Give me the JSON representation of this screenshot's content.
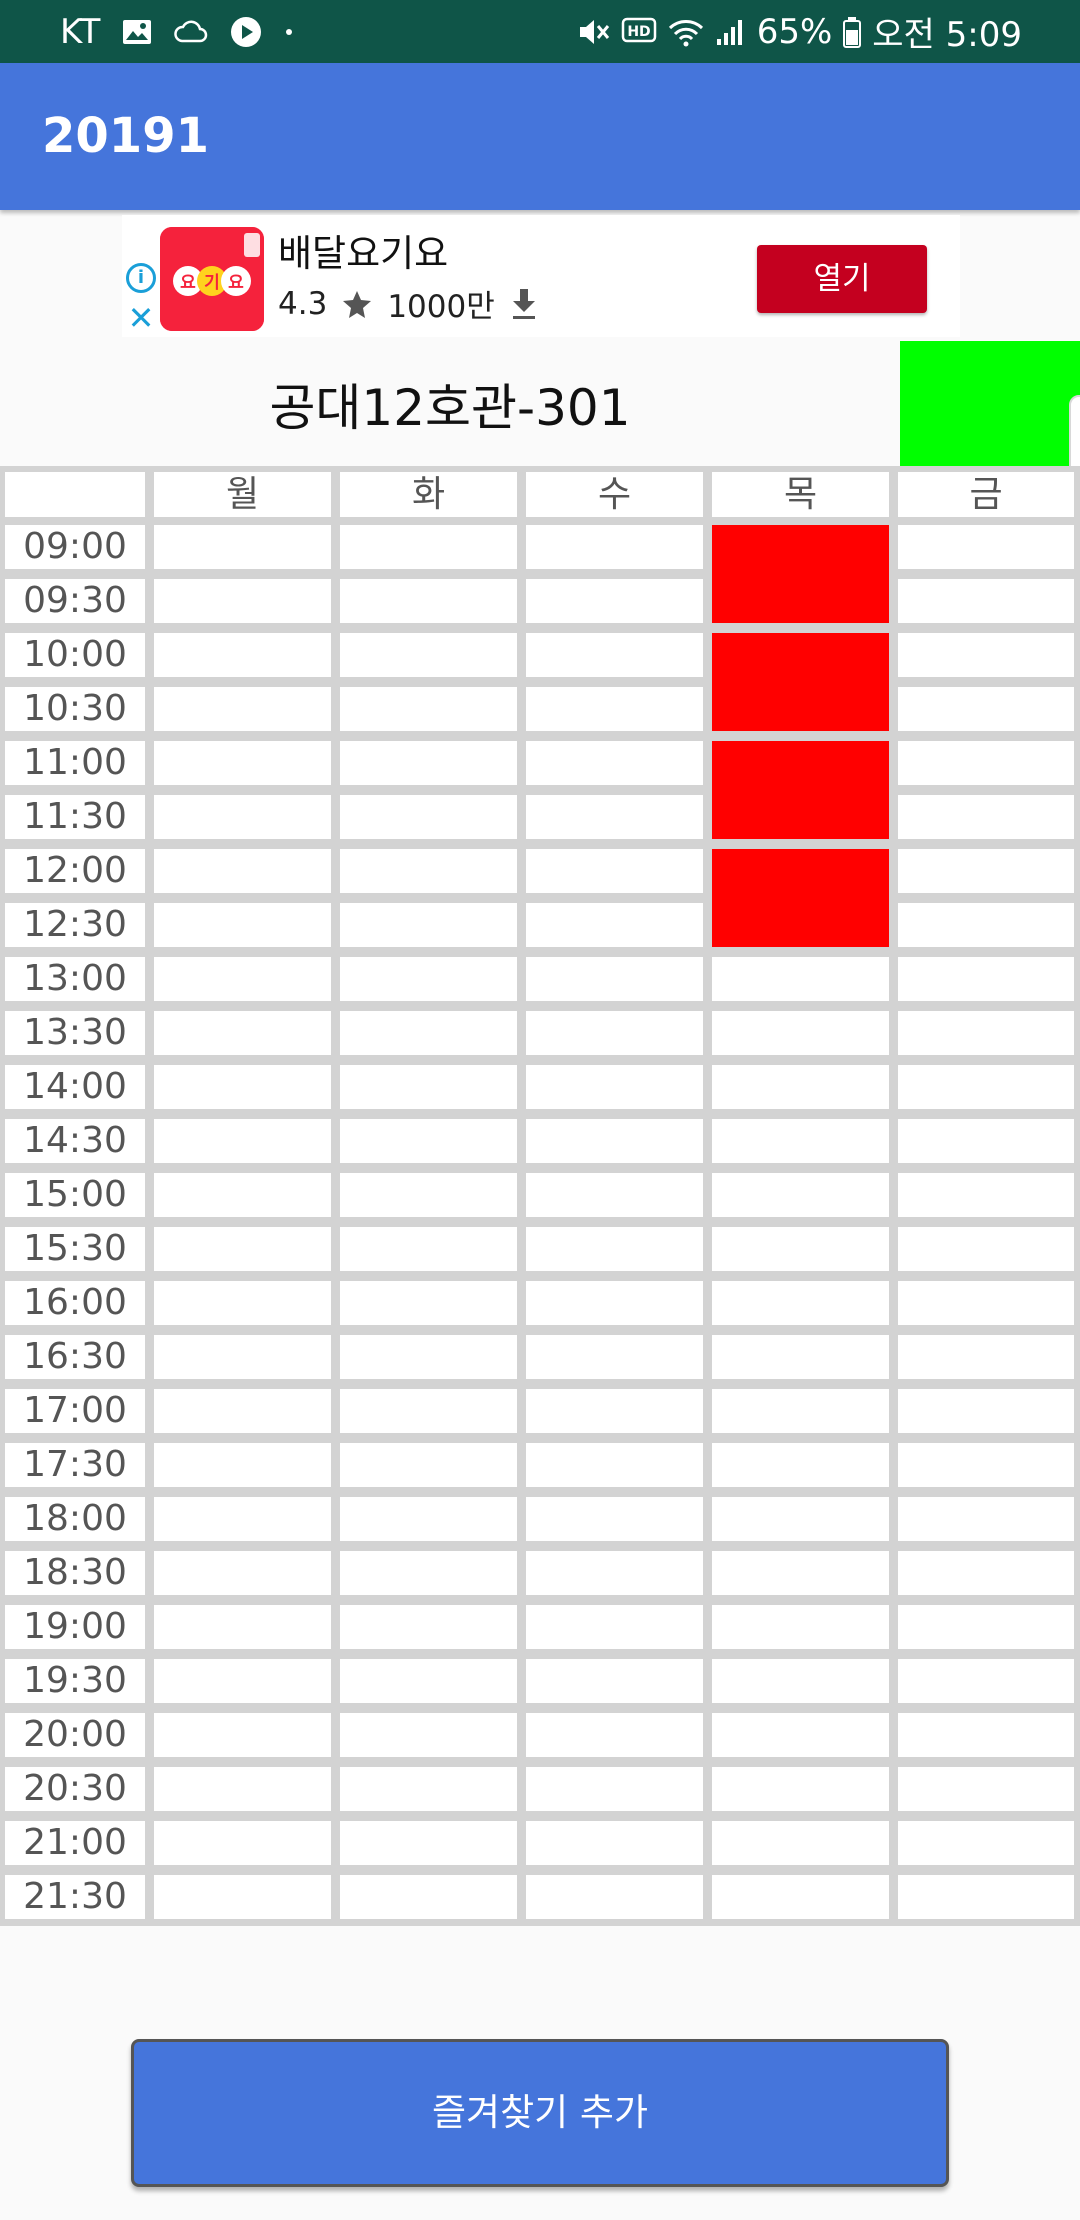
{
  "status_bar": {
    "carrier": "KT",
    "battery_percent": "65%",
    "time": "오전 5:09"
  },
  "app_bar": {
    "title": "20191"
  },
  "ad": {
    "app_name": "배달요기요",
    "rating": "4.3",
    "downloads": "1000만",
    "open_label": "열기",
    "logo_text": "요기요"
  },
  "room": {
    "title": "공대12호관-301",
    "status_color": "#00ff00"
  },
  "timetable": {
    "days": [
      "월",
      "화",
      "수",
      "목",
      "금"
    ],
    "times": [
      "09:00",
      "09:30",
      "10:00",
      "10:30",
      "11:00",
      "11:30",
      "12:00",
      "12:30",
      "13:00",
      "13:30",
      "14:00",
      "14:30",
      "15:00",
      "15:30",
      "16:00",
      "16:30",
      "17:00",
      "17:30",
      "18:00",
      "18:30",
      "19:00",
      "19:30",
      "20:00",
      "20:30",
      "21:00",
      "21:30"
    ],
    "booked_color": "#ff0000",
    "booked_blocks": [
      {
        "day": "목",
        "start": "09:00",
        "end": "10:00"
      },
      {
        "day": "목",
        "start": "10:00",
        "end": "11:00"
      },
      {
        "day": "목",
        "start": "11:00",
        "end": "12:00"
      },
      {
        "day": "목",
        "start": "12:00",
        "end": "13:00"
      }
    ]
  },
  "actions": {
    "add_favorite_label": "즐겨찾기 추가"
  },
  "colors": {
    "status_bar": "#0f5548",
    "app_bar": "#4575db",
    "button": "#4575db",
    "ad_button": "#c4001f"
  }
}
